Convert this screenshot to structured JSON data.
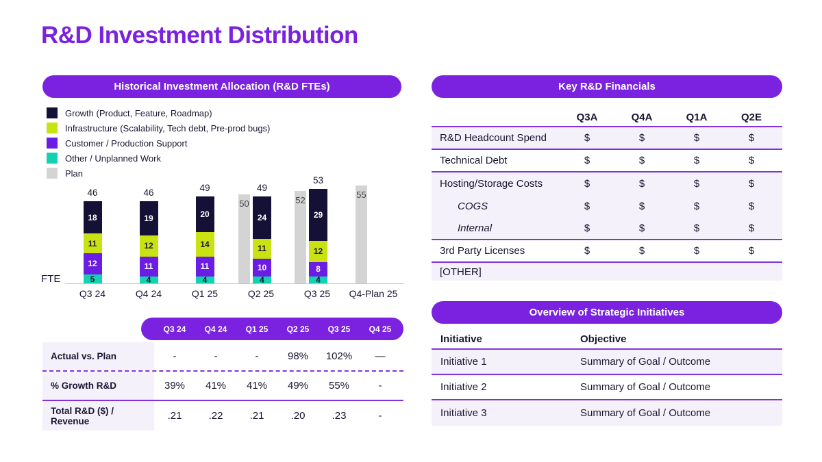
{
  "page": {
    "title": "R&D Investment Distribution"
  },
  "colors": {
    "accent_purple": "#7a22e0",
    "divider_purple": "#8133d9",
    "row_shade": "#f5f1fa",
    "text_dark": "#191430",
    "baseline": "#c9bce9",
    "plan_gray": "#d4d4d4"
  },
  "left_panel": {
    "header": "Historical Investment Allocation (R&D FTEs)",
    "axis_label": "FTE",
    "legend": [
      {
        "label": "Growth (Product, Feature, Roadmap)",
        "color": "#151035"
      },
      {
        "label": "Infrastructure (Scalability, Tech debt, Pre-prod bugs)",
        "color": "#c9e211"
      },
      {
        "label": "Customer / Production Support",
        "color": "#6c1de4"
      },
      {
        "label": "Other / Unplanned Work",
        "color": "#13d2b2"
      },
      {
        "label": "Plan",
        "color": "#d4d4d4"
      }
    ]
  },
  "chart_data": {
    "type": "bar",
    "stacked": true,
    "title": "Historical Investment Allocation (R&D FTEs)",
    "ylabel": "FTE",
    "grid": false,
    "legend_position": "top-left",
    "categories": [
      "Q3 24",
      "Q4 24",
      "Q1 25",
      "Q2 25",
      "Q3 25",
      "Q4-Plan 25"
    ],
    "series": [
      {
        "name": "Other / Unplanned Work",
        "color": "#13d2b2",
        "label_color": "#191430",
        "values": [
          5,
          4,
          4,
          4,
          4,
          null
        ]
      },
      {
        "name": "Customer / Production Support",
        "color": "#6c1de4",
        "label_color": "#ffffff",
        "values": [
          12,
          11,
          11,
          10,
          8,
          null
        ]
      },
      {
        "name": "Infrastructure (Scalability, Tech debt, Pre-prod bugs)",
        "color": "#c9e211",
        "label_color": "#191430",
        "values": [
          11,
          12,
          14,
          11,
          12,
          null
        ]
      },
      {
        "name": "Growth (Product, Feature, Roadmap)",
        "color": "#151035",
        "label_color": "#ffffff",
        "values": [
          18,
          19,
          20,
          24,
          29,
          null
        ]
      }
    ],
    "totals": [
      46,
      46,
      49,
      49,
      53,
      null
    ],
    "plan_series": {
      "name": "Plan",
      "color": "#d4d4d4",
      "values": [
        null,
        null,
        null,
        50,
        52,
        55
      ]
    }
  },
  "bottom_table": {
    "columns": [
      "Q3 24",
      "Q4 24",
      "Q1 25",
      "Q2 25",
      "Q3 25",
      "Q4 25"
    ],
    "rows": [
      {
        "label": "Actual vs. Plan",
        "values": [
          "-",
          "-",
          "-",
          "98%",
          "102%",
          "—"
        ]
      },
      {
        "label": "% Growth R&D",
        "values": [
          "39%",
          "41%",
          "41%",
          "49%",
          "55%",
          "-"
        ]
      },
      {
        "label": "Total R&D ($) / Revenue",
        "values": [
          ".21",
          ".22",
          ".21",
          ".20",
          ".23",
          "-"
        ]
      }
    ]
  },
  "financials": {
    "header": "Key R&D Financials",
    "columns": [
      "Q3A",
      "Q4A",
      "Q1A",
      "Q2E"
    ],
    "rows": [
      {
        "label": "R&D Headcount Spend",
        "values": [
          "$",
          "$",
          "$",
          "$"
        ],
        "indent": false
      },
      {
        "label": "Technical Debt",
        "values": [
          "$",
          "$",
          "$",
          "$"
        ],
        "indent": false
      },
      {
        "label": "Hosting/Storage Costs",
        "values": [
          "$",
          "$",
          "$",
          "$"
        ],
        "indent": false
      },
      {
        "label": "COGS",
        "values": [
          "$",
          "$",
          "$",
          "$"
        ],
        "indent": true
      },
      {
        "label": "Internal",
        "values": [
          "$",
          "$",
          "$",
          "$"
        ],
        "indent": true
      },
      {
        "label": "3rd Party Licenses",
        "values": [
          "$",
          "$",
          "$",
          "$"
        ],
        "indent": false
      },
      {
        "label": "[OTHER]",
        "values": [
          "",
          "",
          "",
          ""
        ],
        "indent": false
      }
    ]
  },
  "initiatives": {
    "header": "Overview of Strategic Initiatives",
    "columns": [
      "Initiative",
      "Objective"
    ],
    "rows": [
      {
        "initiative": "Initiative 1",
        "objective": "Summary of Goal / Outcome"
      },
      {
        "initiative": "Initiative 2",
        "objective": "Summary of Goal / Outcome"
      },
      {
        "initiative": "Initiative 3",
        "objective": "Summary of Goal / Outcome"
      }
    ]
  }
}
